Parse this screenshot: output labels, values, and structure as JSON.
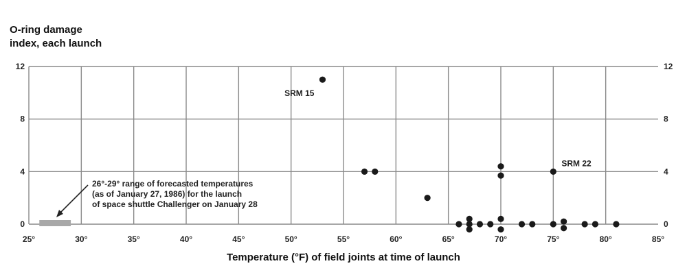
{
  "chart_data": {
    "type": "scatter",
    "title": "",
    "ylabel_lines": [
      "O-ring damage",
      "index, each launch"
    ],
    "xlabel": "Temperature (°F) of field joints at time of launch",
    "xlim": [
      25,
      85
    ],
    "ylim": [
      0,
      12
    ],
    "x_ticks": [
      25,
      30,
      35,
      40,
      45,
      50,
      55,
      60,
      65,
      70,
      75,
      80,
      85
    ],
    "x_tick_labels": [
      "25°",
      "30°",
      "35°",
      "40°",
      "45°",
      "50°",
      "55°",
      "60°",
      "65°",
      "70°",
      "75°",
      "80°",
      "85°"
    ],
    "y_ticks": [
      0,
      4,
      8,
      12
    ],
    "y_tick_labels": [
      "0",
      "4",
      "8",
      "12"
    ],
    "grid": true,
    "dot_color": "#1a1a1a",
    "grid_color": "#8a8a8a",
    "forecast_range_color": "#a8a8a8",
    "points": [
      {
        "x": 53,
        "y": 11
      },
      {
        "x": 57,
        "y": 4
      },
      {
        "x": 58,
        "y": 4
      },
      {
        "x": 63,
        "y": 2
      },
      {
        "x": 70,
        "y": 4.4
      },
      {
        "x": 70,
        "y": 3.7
      },
      {
        "x": 75,
        "y": 4
      },
      {
        "x": 66,
        "y": 0
      },
      {
        "x": 67,
        "y": 0.4
      },
      {
        "x": 67,
        "y": 0
      },
      {
        "x": 67,
        "y": -0.4
      },
      {
        "x": 68,
        "y": 0
      },
      {
        "x": 69,
        "y": 0
      },
      {
        "x": 70,
        "y": 0.4
      },
      {
        "x": 70,
        "y": -0.4
      },
      {
        "x": 72,
        "y": 0
      },
      {
        "x": 73,
        "y": 0
      },
      {
        "x": 75,
        "y": 0
      },
      {
        "x": 76,
        "y": 0.2
      },
      {
        "x": 76,
        "y": -0.3
      },
      {
        "x": 78,
        "y": 0
      },
      {
        "x": 79,
        "y": 0
      },
      {
        "x": 81,
        "y": 0
      }
    ],
    "annotations": [
      {
        "text": "SRM 15",
        "x": 53,
        "y": 11
      },
      {
        "text": "SRM 22",
        "x": 75,
        "y": 4
      }
    ],
    "forecast_range": {
      "x_from": 26,
      "x_to": 29,
      "text_lines": [
        "26°-29° range of forecasted temperatures",
        "(as of January 27, 1986) for the launch",
        "of space shuttle Challenger on January 28"
      ]
    }
  }
}
